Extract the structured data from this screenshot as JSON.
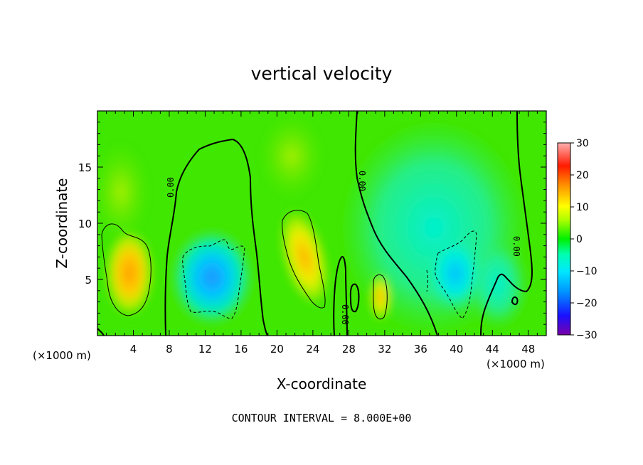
{
  "chart_data": {
    "type": "heatmap",
    "title": "vertical velocity",
    "xlabel": "X-coordinate",
    "ylabel": "Z-coordinate",
    "x_unit_left": "(×1000 m)",
    "x_unit_right": "(×1000 m)",
    "xlim": [
      0,
      50
    ],
    "ylim": [
      0,
      20
    ],
    "x_ticks": [
      4,
      8,
      12,
      16,
      20,
      24,
      28,
      32,
      36,
      40,
      44,
      48
    ],
    "y_ticks": [
      5,
      10,
      15
    ],
    "colorbar": {
      "min": -30,
      "max": 30,
      "ticks": [
        30,
        20,
        10,
        0,
        -10,
        -20,
        -30
      ],
      "tick_labels": [
        "30",
        "20",
        "10",
        "0",
        "−10",
        "−20",
        "−30"
      ]
    },
    "contour_interval_text": "CONTOUR INTERVAL = 8.000E+00",
    "contour_labels": [
      "0.00",
      "0.00",
      "0.00",
      "0.00"
    ],
    "features": [
      {
        "x": 3.5,
        "z": 5.5,
        "w": 14
      },
      {
        "x": 13.5,
        "z": 5.0,
        "w": -12
      },
      {
        "x": 23.0,
        "z": 6.5,
        "w": 11
      },
      {
        "x": 31.0,
        "z": 3.5,
        "w": 9
      },
      {
        "x": 40.0,
        "z": 5.5,
        "w": -9
      }
    ]
  }
}
